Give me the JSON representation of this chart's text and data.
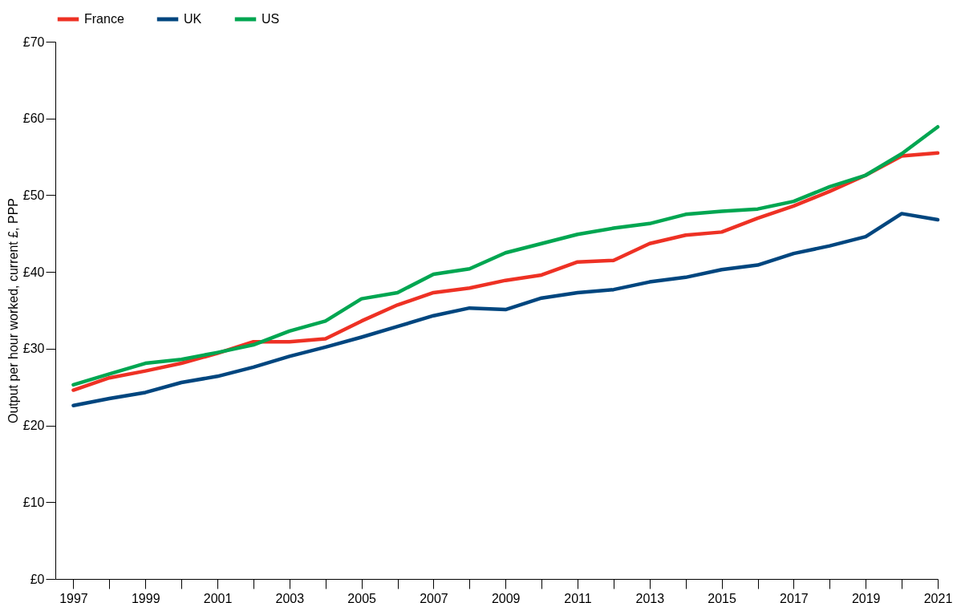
{
  "chart_data": {
    "type": "line",
    "ylabel": "Output per hour worked, current £, PPP",
    "x": [
      1997,
      1998,
      1999,
      2000,
      2001,
      2002,
      2003,
      2004,
      2005,
      2006,
      2007,
      2008,
      2009,
      2010,
      2011,
      2012,
      2013,
      2014,
      2015,
      2016,
      2017,
      2018,
      2019,
      2020,
      2021
    ],
    "series": [
      {
        "name": "France",
        "color": "#ee3124",
        "values": [
          24.6,
          26.2,
          27.1,
          28.1,
          29.4,
          30.9,
          30.9,
          31.3,
          33.6,
          35.7,
          37.3,
          37.9,
          38.9,
          39.6,
          41.3,
          41.5,
          43.7,
          44.8,
          45.2,
          47.0,
          48.6,
          50.5,
          52.6,
          55.1,
          55.5
        ]
      },
      {
        "name": "UK",
        "color": "#00467f",
        "values": [
          22.6,
          23.5,
          24.3,
          25.6,
          26.4,
          27.6,
          29.0,
          30.2,
          31.5,
          32.9,
          34.3,
          35.3,
          35.1,
          36.6,
          37.3,
          37.7,
          38.7,
          39.3,
          40.3,
          40.9,
          42.4,
          43.4,
          44.6,
          47.6,
          46.8
        ]
      },
      {
        "name": "US",
        "color": "#00a651",
        "values": [
          25.3,
          26.7,
          28.1,
          28.6,
          29.5,
          30.5,
          32.3,
          33.6,
          36.5,
          37.3,
          39.7,
          40.4,
          42.5,
          43.7,
          44.9,
          45.7,
          46.3,
          47.5,
          47.9,
          48.2,
          49.2,
          51.1,
          52.6,
          55.4,
          58.9
        ]
      }
    ],
    "xlim": [
      1996.5,
      2021
    ],
    "xticks": [
      1997,
      {
        "value": 1998,
        "label": null
      },
      1999,
      {
        "value": 2000,
        "label": null
      },
      2001,
      {
        "value": 2002,
        "label": null
      },
      2003,
      {
        "value": 2004,
        "label": null
      },
      2005,
      {
        "value": 2006,
        "label": null
      },
      2007,
      {
        "value": 2008,
        "label": null
      },
      2009,
      {
        "value": 2010,
        "label": null
      },
      2011,
      {
        "value": 2012,
        "label": null
      },
      2013,
      {
        "value": 2014,
        "label": null
      },
      2015,
      {
        "value": 2016,
        "label": null
      },
      2017,
      {
        "value": 2018,
        "label": null
      },
      2019,
      {
        "value": 2020,
        "label": null
      },
      2021
    ],
    "ylim": [
      0,
      70
    ],
    "yticks": [
      {
        "value": 0,
        "label": "£0"
      },
      {
        "value": 10,
        "label": "£10"
      },
      {
        "value": 20,
        "label": "£20"
      },
      {
        "value": 30,
        "label": "£30"
      },
      {
        "value": 40,
        "label": "£40"
      },
      {
        "value": 50,
        "label": "£50"
      },
      {
        "value": 60,
        "label": "£60"
      },
      {
        "value": 70,
        "label": "£70"
      }
    ],
    "grid": false,
    "legend": "top",
    "marker": "none",
    "line_style": "solid"
  }
}
